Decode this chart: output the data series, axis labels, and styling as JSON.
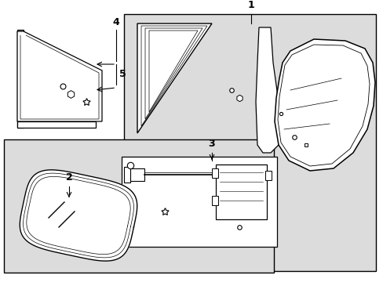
{
  "background_color": "#ffffff",
  "shaded_bg": "#dcdcdc",
  "line_color": "#000000",
  "fig_width": 4.89,
  "fig_height": 3.6,
  "dpi": 100
}
